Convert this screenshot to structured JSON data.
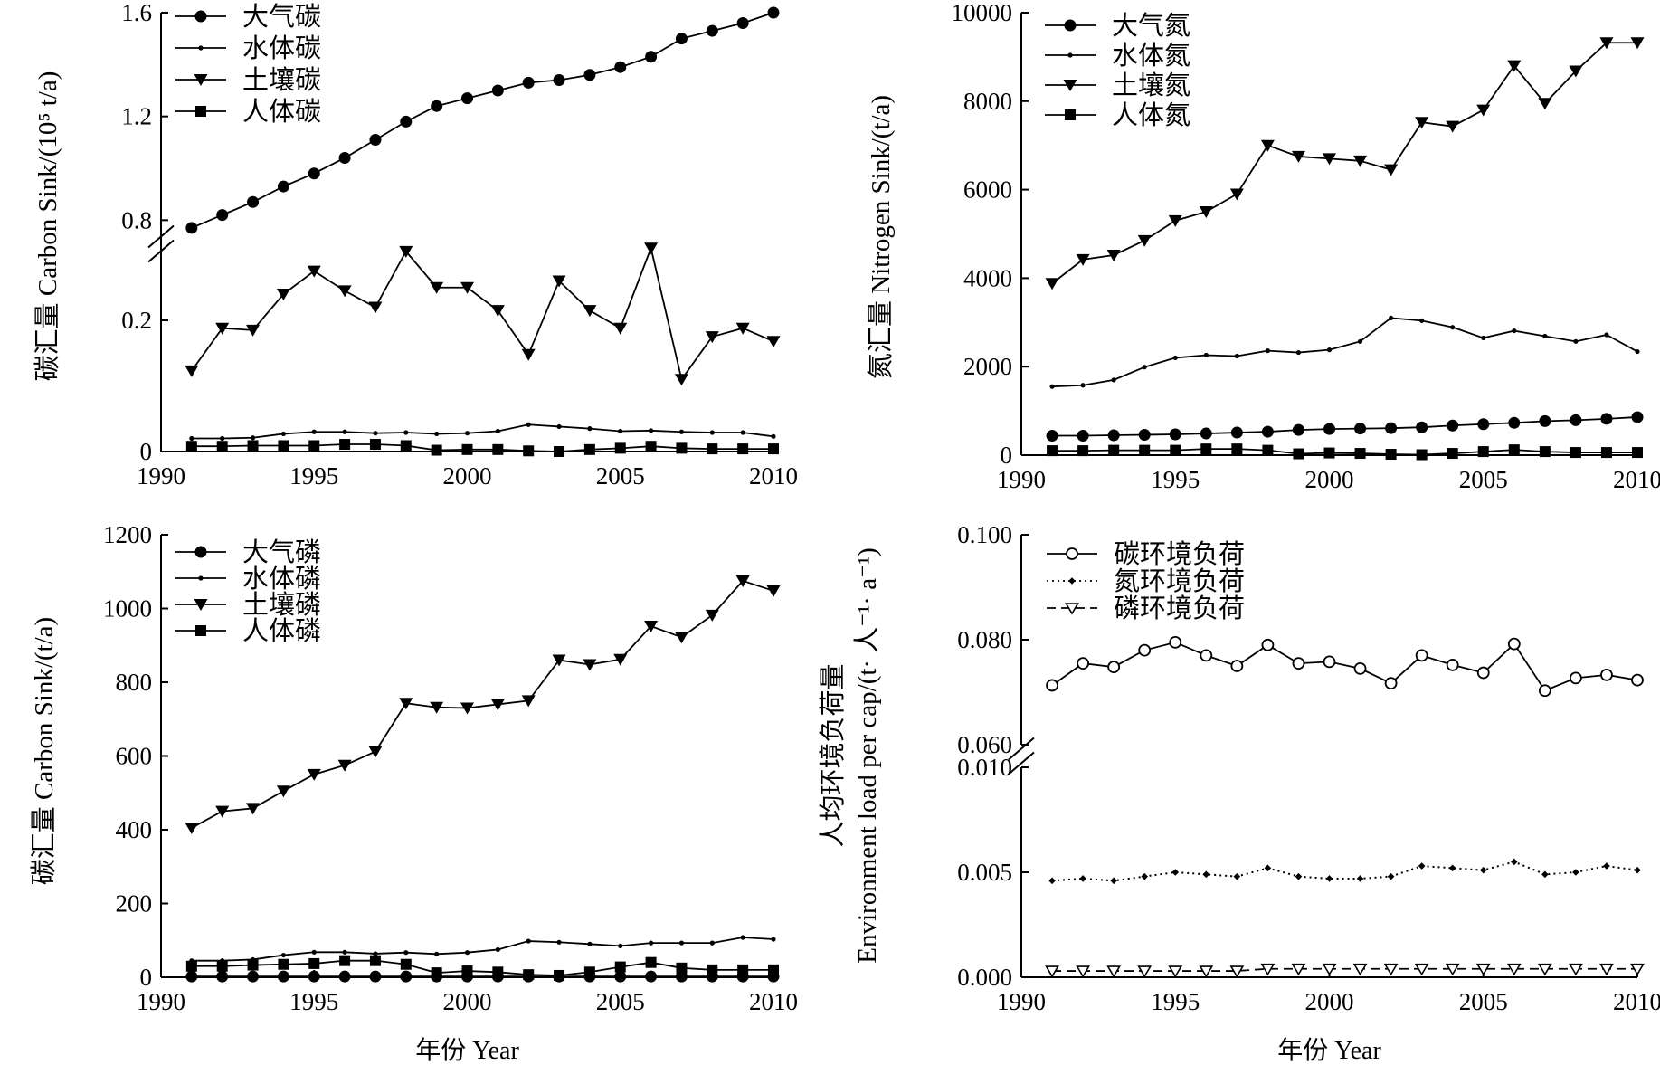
{
  "years": [
    1991,
    1992,
    1993,
    1994,
    1995,
    1996,
    1997,
    1998,
    1999,
    2000,
    2001,
    2002,
    2003,
    2004,
    2005,
    2006,
    2007,
    2008,
    2009,
    2010
  ],
  "x_axis": {
    "label": "年份 Year",
    "ticks": [
      1990,
      1995,
      2000,
      2005,
      2010
    ],
    "range": [
      1990,
      2010
    ]
  },
  "chart_data": [
    {
      "id": "carbon",
      "type": "line",
      "ylabel": "碳汇量 Carbon Sink/(10⁵ t/a)",
      "broken_axis": true,
      "y_break": {
        "lower_range": [
          0,
          0.32
        ],
        "upper_range": [
          0.7,
          1.6
        ]
      },
      "yticks": [
        {
          "value": 0,
          "label": "0"
        },
        {
          "value": 0.2,
          "label": "0.2"
        },
        {
          "value": 0.8,
          "label": "0.8"
        },
        {
          "value": 1.2,
          "label": "1.2"
        },
        {
          "value": 1.6,
          "label": "1.6"
        }
      ],
      "legend": [
        "大气碳",
        "水体碳",
        "土壤碳",
        "人体碳"
      ],
      "series": [
        {
          "name": "大气碳",
          "marker": "circle-filled",
          "values": [
            0.77,
            0.82,
            0.87,
            0.93,
            0.98,
            1.04,
            1.11,
            1.18,
            1.24,
            1.27,
            1.3,
            1.33,
            1.34,
            1.36,
            1.39,
            1.43,
            1.5,
            1.53,
            1.56,
            1.6
          ]
        },
        {
          "name": "水体碳",
          "marker": "dot-small",
          "values": [
            0.02,
            0.02,
            0.021,
            0.027,
            0.03,
            0.03,
            0.028,
            0.029,
            0.027,
            0.028,
            0.031,
            0.041,
            0.038,
            0.035,
            0.031,
            0.032,
            0.03,
            0.029,
            0.029,
            0.023
          ]
        },
        {
          "name": "土壤碳",
          "marker": "triangle-down-filled",
          "values": [
            0.123,
            0.188,
            0.185,
            0.24,
            0.275,
            0.245,
            0.22,
            0.305,
            0.25,
            0.25,
            0.215,
            0.148,
            0.26,
            0.215,
            0.188,
            0.31,
            0.11,
            0.175,
            0.188,
            0.168
          ]
        },
        {
          "name": "人体碳",
          "marker": "square-filled",
          "values": [
            0.008,
            0.008,
            0.009,
            0.009,
            0.009,
            0.011,
            0.011,
            0.009,
            0.002,
            0.003,
            0.003,
            0.001,
            0.0,
            0.003,
            0.005,
            0.008,
            0.005,
            0.004,
            0.004,
            0.004
          ]
        }
      ]
    },
    {
      "id": "nitrogen",
      "type": "line",
      "ylabel": "氮汇量 Nitrogen Sink/(t/a)",
      "ylim": [
        0,
        10000
      ],
      "yticks": [
        {
          "value": 0,
          "label": "0"
        },
        {
          "value": 2000,
          "label": "2000"
        },
        {
          "value": 4000,
          "label": "4000"
        },
        {
          "value": 6000,
          "label": "6000"
        },
        {
          "value": 8000,
          "label": "8000"
        },
        {
          "value": 10000,
          "label": "10000"
        }
      ],
      "legend": [
        "大气氮",
        "水体氮",
        "土壤氮",
        "人体氮"
      ],
      "series": [
        {
          "name": "大气氮",
          "marker": "circle-filled",
          "values": [
            440,
            440,
            450,
            460,
            470,
            490,
            510,
            530,
            570,
            590,
            600,
            610,
            630,
            670,
            700,
            730,
            770,
            790,
            820,
            860
          ]
        },
        {
          "name": "水体氮",
          "marker": "dot-small",
          "values": [
            1550,
            1580,
            1700,
            1990,
            2200,
            2260,
            2240,
            2360,
            2320,
            2380,
            2570,
            3100,
            3040,
            2890,
            2650,
            2810,
            2690,
            2570,
            2720,
            2340
          ]
        },
        {
          "name": "土壤氮",
          "marker": "triangle-down-filled",
          "values": [
            3880,
            4420,
            4520,
            4850,
            5300,
            5500,
            5900,
            7000,
            6750,
            6700,
            6650,
            6450,
            7520,
            7430,
            7800,
            8800,
            7950,
            8680,
            9320,
            9320
          ]
        },
        {
          "name": "人体氮",
          "marker": "square-filled",
          "values": [
            100,
            100,
            110,
            110,
            110,
            140,
            140,
            110,
            30,
            50,
            40,
            20,
            10,
            40,
            80,
            120,
            80,
            60,
            60,
            60
          ]
        }
      ]
    },
    {
      "id": "phosphorus",
      "type": "line",
      "ylabel": "碳汇量 Carbon Sink/(t/a)",
      "ylim": [
        0,
        1200
      ],
      "yticks": [
        {
          "value": 0,
          "label": "0"
        },
        {
          "value": 200,
          "label": "200"
        },
        {
          "value": 400,
          "label": "400"
        },
        {
          "value": 600,
          "label": "600"
        },
        {
          "value": 800,
          "label": "800"
        },
        {
          "value": 1000,
          "label": "1000"
        },
        {
          "value": 1200,
          "label": "1200"
        }
      ],
      "legend": [
        "大气磷",
        "水体磷",
        "土壤磷",
        "人体磷"
      ],
      "series": [
        {
          "name": "大气磷",
          "marker": "circle-filled",
          "values": [
            2,
            2,
            2,
            2,
            2,
            2,
            2,
            2,
            2,
            2,
            2,
            2,
            2,
            2,
            2,
            2,
            2,
            2,
            2,
            2
          ]
        },
        {
          "name": "水体磷",
          "marker": "dot-small",
          "values": [
            45,
            45,
            48,
            60,
            68,
            68,
            64,
            67,
            63,
            67,
            75,
            98,
            95,
            90,
            85,
            93,
            93,
            93,
            108,
            103
          ]
        },
        {
          "name": "土壤磷",
          "marker": "triangle-down-filled",
          "values": [
            405,
            450,
            458,
            505,
            550,
            575,
            612,
            743,
            732,
            730,
            740,
            750,
            860,
            848,
            862,
            952,
            922,
            982,
            1075,
            1048
          ]
        },
        {
          "name": "人体磷",
          "marker": "square-filled",
          "values": [
            30,
            30,
            33,
            35,
            37,
            45,
            45,
            35,
            12,
            17,
            14,
            7,
            5,
            14,
            28,
            40,
            25,
            20,
            20,
            20
          ]
        }
      ]
    },
    {
      "id": "load",
      "type": "line",
      "ylabel_lines": [
        "人均环境负荷量",
        "Environment load per cap/(t· 人⁻¹· a⁻¹)"
      ],
      "broken_axis": true,
      "y_break": {
        "lower_range": [
          0,
          0.01
        ],
        "upper_range": [
          0.06,
          0.1
        ]
      },
      "yticks": [
        {
          "value": 0,
          "label": "0.000"
        },
        {
          "value": 0.005,
          "label": "0.005"
        },
        {
          "value": 0.01,
          "label": "0.010"
        },
        {
          "value": 0.06,
          "label": "0.060"
        },
        {
          "value": 0.08,
          "label": "0.080"
        },
        {
          "value": 0.1,
          "label": "0.100"
        }
      ],
      "legend": [
        "碳环境负荷",
        "氮环境负荷",
        "磷环境负荷"
      ],
      "series": [
        {
          "name": "碳环境负荷",
          "marker": "circle-open",
          "line": "solid",
          "values": [
            0.0713,
            0.0755,
            0.0748,
            0.078,
            0.0795,
            0.077,
            0.075,
            0.079,
            0.0755,
            0.0758,
            0.0745,
            0.0717,
            0.077,
            0.0752,
            0.0737,
            0.0792,
            0.0703,
            0.0727,
            0.0733,
            0.0723
          ]
        },
        {
          "name": "氮环境负荷",
          "marker": "diamond-small",
          "line": "dotted",
          "values": [
            0.0046,
            0.0047,
            0.0046,
            0.0048,
            0.005,
            0.0049,
            0.0048,
            0.0052,
            0.0048,
            0.0047,
            0.0047,
            0.0048,
            0.0053,
            0.0052,
            0.0051,
            0.0055,
            0.0049,
            0.005,
            0.0053,
            0.0051
          ]
        },
        {
          "name": "磷环境负荷",
          "marker": "triangle-down-open",
          "line": "dashed",
          "values": [
            0.0003,
            0.0003,
            0.0003,
            0.0003,
            0.0003,
            0.0003,
            0.0003,
            0.0004,
            0.0004,
            0.0004,
            0.0004,
            0.0004,
            0.0004,
            0.0004,
            0.0004,
            0.0004,
            0.0004,
            0.0004,
            0.0004,
            0.0004
          ]
        }
      ]
    }
  ]
}
